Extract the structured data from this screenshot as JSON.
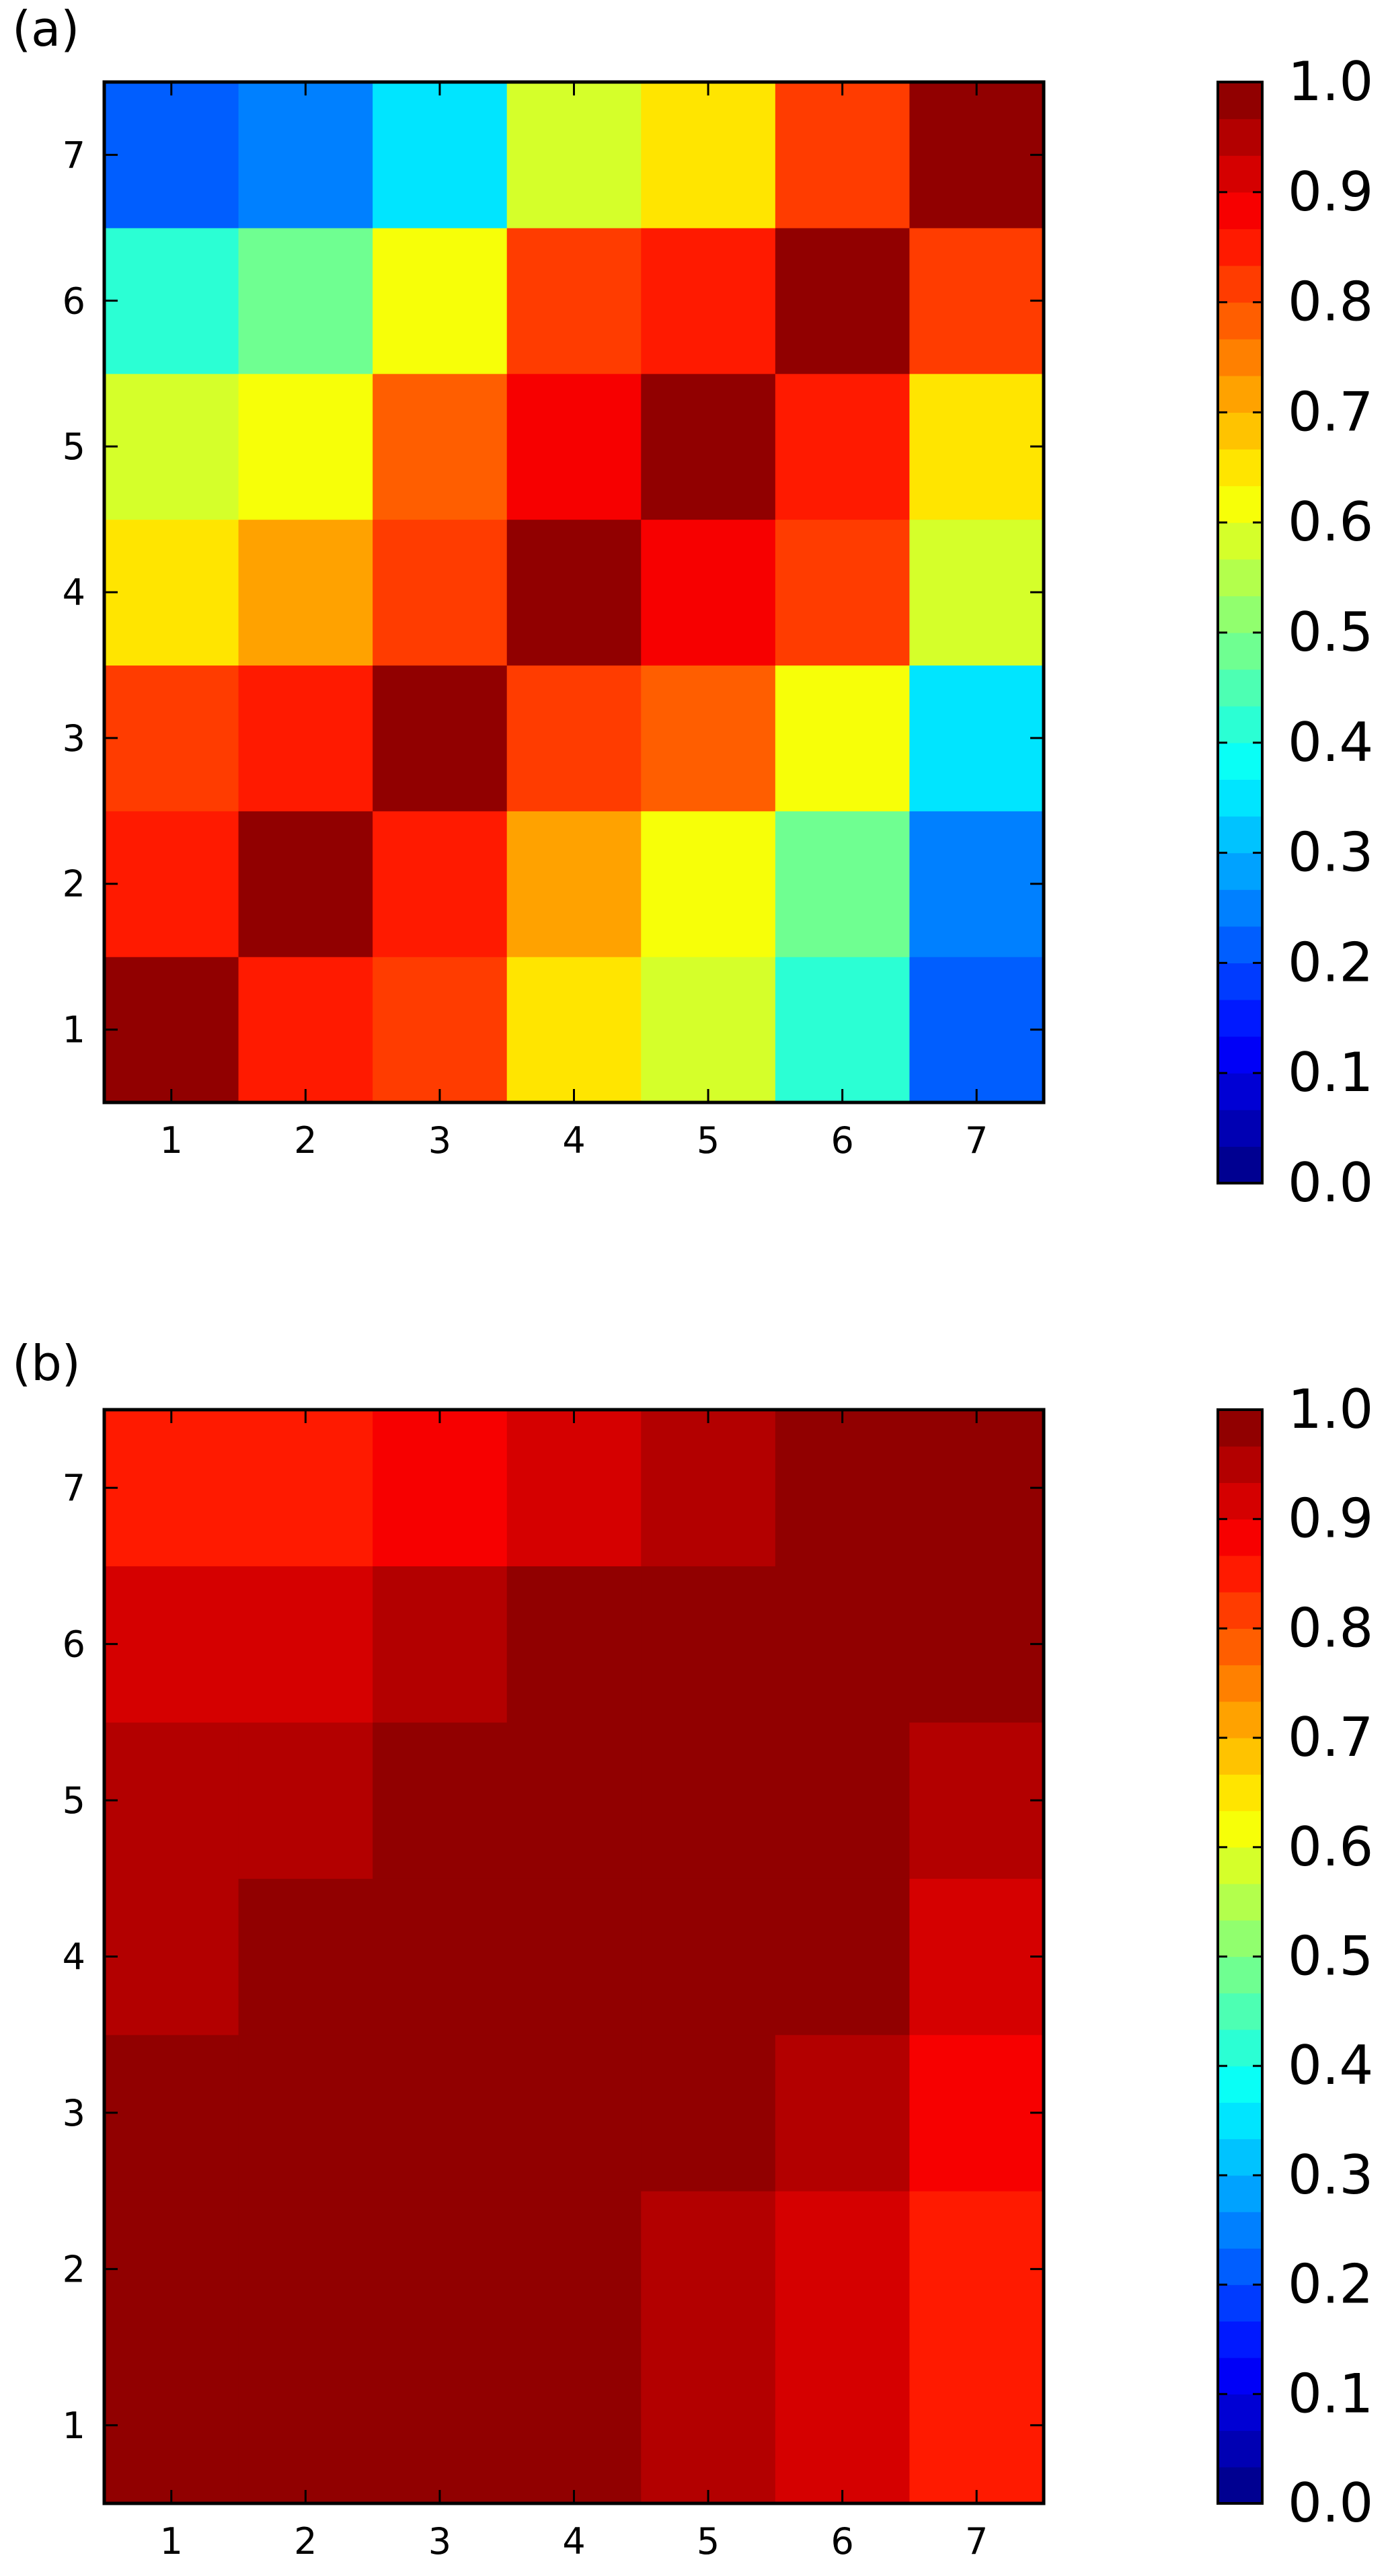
{
  "chart_data": [
    {
      "type": "heatmap",
      "panel_label": "(a)",
      "x": [
        1,
        2,
        3,
        4,
        5,
        6,
        7
      ],
      "y": [
        1,
        2,
        3,
        4,
        5,
        6,
        7
      ],
      "xlim": [
        0.5,
        7.5
      ],
      "ylim": [
        0.5,
        7.5
      ],
      "x_ticks": [
        "1",
        "2",
        "3",
        "4",
        "5",
        "6",
        "7"
      ],
      "y_ticks": [
        "1",
        "2",
        "3",
        "4",
        "5",
        "6",
        "7"
      ],
      "colormap": "jet",
      "color_range": [
        0.0,
        1.0
      ],
      "colorbar_levels": 30,
      "colorbar_ticks": [
        "0.0",
        "0.1",
        "0.2",
        "0.3",
        "0.4",
        "0.5",
        "0.6",
        "0.7",
        "0.8",
        "0.9",
        "1.0"
      ],
      "values_by_y_then_x": [
        [
          1.0,
          0.85,
          0.82,
          0.65,
          0.58,
          0.4,
          0.22
        ],
        [
          0.85,
          1.0,
          0.85,
          0.72,
          0.63,
          0.48,
          0.25
        ],
        [
          0.82,
          0.85,
          1.0,
          0.82,
          0.78,
          0.62,
          0.35
        ],
        [
          0.65,
          0.72,
          0.82,
          1.0,
          0.88,
          0.82,
          0.58
        ],
        [
          0.58,
          0.63,
          0.78,
          0.88,
          1.0,
          0.85,
          0.65
        ],
        [
          0.4,
          0.48,
          0.62,
          0.82,
          0.85,
          1.0,
          0.82
        ],
        [
          0.22,
          0.25,
          0.35,
          0.58,
          0.65,
          0.82,
          1.0
        ]
      ]
    },
    {
      "type": "heatmap",
      "panel_label": "(b)",
      "x": [
        1,
        2,
        3,
        4,
        5,
        6,
        7
      ],
      "y": [
        1,
        2,
        3,
        4,
        5,
        6,
        7
      ],
      "xlim": [
        0.5,
        7.5
      ],
      "ylim": [
        0.5,
        7.5
      ],
      "x_ticks": [
        "1",
        "2",
        "3",
        "4",
        "5",
        "6",
        "7"
      ],
      "y_ticks": [
        "1",
        "2",
        "3",
        "4",
        "5",
        "6",
        "7"
      ],
      "colormap": "jet",
      "color_range": [
        0.0,
        1.0
      ],
      "colorbar_levels": 30,
      "colorbar_ticks": [
        "0.0",
        "0.1",
        "0.2",
        "0.3",
        "0.4",
        "0.5",
        "0.6",
        "0.7",
        "0.8",
        "0.9",
        "1.0"
      ],
      "values_by_y_then_x": [
        [
          1.0,
          1.0,
          1.0,
          0.97,
          0.96,
          0.93,
          0.85
        ],
        [
          1.0,
          1.0,
          1.0,
          0.99,
          0.96,
          0.93,
          0.85
        ],
        [
          1.0,
          1.0,
          1.0,
          1.0,
          1.0,
          0.96,
          0.88
        ],
        [
          0.96,
          1.0,
          1.0,
          1.0,
          1.0,
          0.99,
          0.93
        ],
        [
          0.96,
          0.96,
          1.0,
          1.0,
          1.0,
          0.99,
          0.96
        ],
        [
          0.93,
          0.93,
          0.96,
          1.0,
          1.0,
          0.99,
          0.99
        ],
        [
          0.85,
          0.85,
          0.88,
          0.93,
          0.96,
          0.99,
          0.99
        ]
      ]
    }
  ]
}
